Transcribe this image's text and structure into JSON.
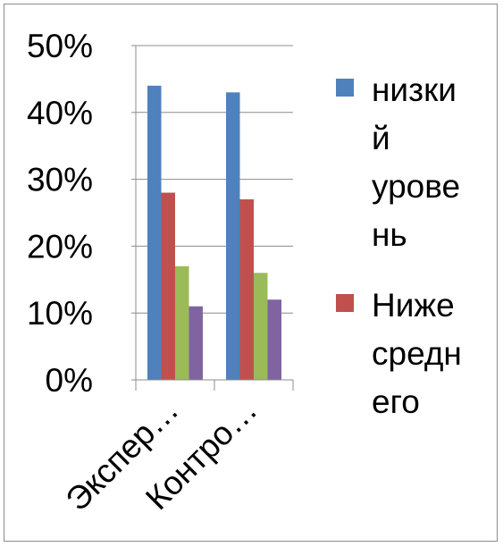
{
  "chart_data": {
    "type": "bar",
    "categories": [
      "Экспер…",
      "Контро…"
    ],
    "y_ticks": [
      "0%",
      "10%",
      "20%",
      "30%",
      "40%",
      "50%"
    ],
    "ylim": [
      0,
      50
    ],
    "grid": true,
    "legend_position": "right",
    "series": [
      {
        "name": "низкий уровень",
        "legend_lines": [
          "низки",
          "й",
          "урове",
          "нь"
        ],
        "color": "#4F81BD",
        "values": [
          44,
          43
        ]
      },
      {
        "name": "Ниже среднего",
        "legend_lines": [
          "Ниже",
          "средн",
          "его"
        ],
        "color": "#C0504D",
        "values": [
          28,
          27
        ]
      },
      {
        "name": "",
        "color": "#9BBB59",
        "values": [
          17,
          16
        ]
      },
      {
        "name": "",
        "color": "#8064A2",
        "values": [
          11,
          12
        ]
      }
    ]
  }
}
